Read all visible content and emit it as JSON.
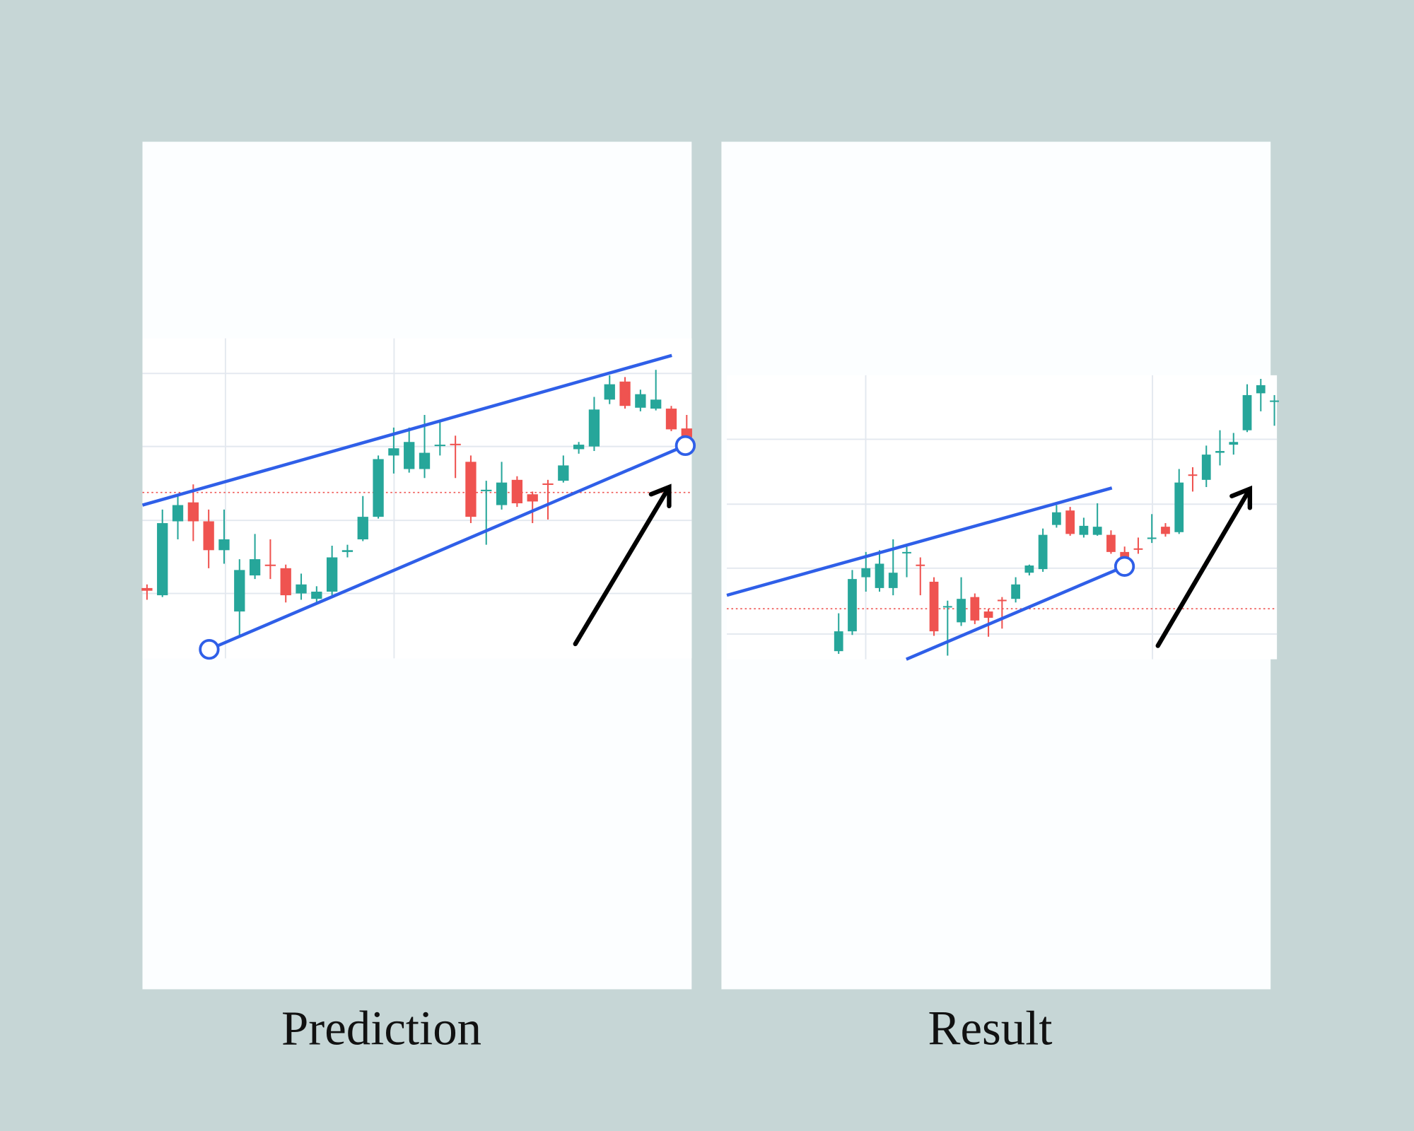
{
  "chart_data": [
    {
      "type": "candlestick",
      "title": "Prediction",
      "up_color": "#26a69a",
      "down_color": "#ef5350",
      "ylim": [
        0,
        355
      ],
      "open": [
        78,
        70,
        152,
        173,
        152,
        120,
        52,
        92,
        104,
        100,
        72,
        66,
        74,
        118,
        132,
        157,
        225,
        210,
        210,
        236,
        238,
        218,
        186,
        170,
        198,
        182,
        194,
        197,
        232,
        235,
        287,
        307,
        278,
        277,
        277,
        255
      ],
      "high": [
        82,
        165,
        180,
        193,
        165,
        165,
        110,
        138,
        132,
        104,
        94,
        80,
        125,
        126,
        180,
        225,
        256,
        256,
        270,
        264,
        247,
        225,
        197,
        218,
        202,
        185,
        198,
        225,
        240,
        290,
        314,
        312,
        298,
        320,
        280,
        270
      ],
      "low": [
        65,
        68,
        132,
        130,
        100,
        105,
        25,
        88,
        88,
        62,
        65,
        62,
        70,
        112,
        130,
        155,
        205,
        206,
        200,
        225,
        200,
        150,
        126,
        165,
        168,
        150,
        154,
        195,
        227,
        230,
        282,
        277,
        274,
        275,
        252,
        240
      ],
      "close": [
        75,
        150,
        170,
        152,
        120,
        132,
        98,
        110,
        103,
        70,
        82,
        74,
        112,
        120,
        157,
        221,
        233,
        240,
        228,
        237,
        237,
        157,
        187,
        195,
        172,
        174,
        193,
        214,
        237,
        276,
        304,
        280,
        293,
        287,
        254,
        245
      ]
    },
    {
      "type": "candlestick",
      "title": "Result",
      "up_color": "#26a69a",
      "down_color": "#ef5350",
      "ylim": [
        0,
        315
      ],
      "open": [
        9,
        31,
        91,
        79,
        79,
        118,
        105,
        86,
        58,
        41,
        69,
        53,
        66,
        67,
        96,
        100,
        149,
        165,
        138,
        138,
        138,
        119,
        123,
        134,
        147,
        141,
        205,
        199,
        229,
        238,
        254,
        295,
        286
      ],
      "high": [
        51,
        99,
        119,
        121,
        133,
        125,
        113,
        91,
        65,
        91,
        73,
        56,
        69,
        91,
        105,
        145,
        171,
        169,
        157,
        173,
        143,
        125,
        135,
        161,
        151,
        211,
        213,
        237,
        254,
        251,
        305,
        311,
        293
      ],
      "low": [
        6,
        27,
        75,
        75,
        71,
        91,
        71,
        26,
        4,
        37,
        39,
        25,
        34,
        63,
        93,
        97,
        146,
        137,
        135,
        137,
        117,
        109,
        117,
        129,
        136,
        139,
        186,
        191,
        215,
        227,
        252,
        275,
        259
      ],
      "close": [
        31,
        89,
        101,
        106,
        96,
        119,
        104,
        31,
        59,
        67,
        43,
        46,
        65,
        83,
        104,
        138,
        163,
        139,
        148,
        147,
        119,
        111,
        122,
        135,
        139,
        196,
        204,
        227,
        231,
        241,
        293,
        304,
        287
      ]
    }
  ]
}
